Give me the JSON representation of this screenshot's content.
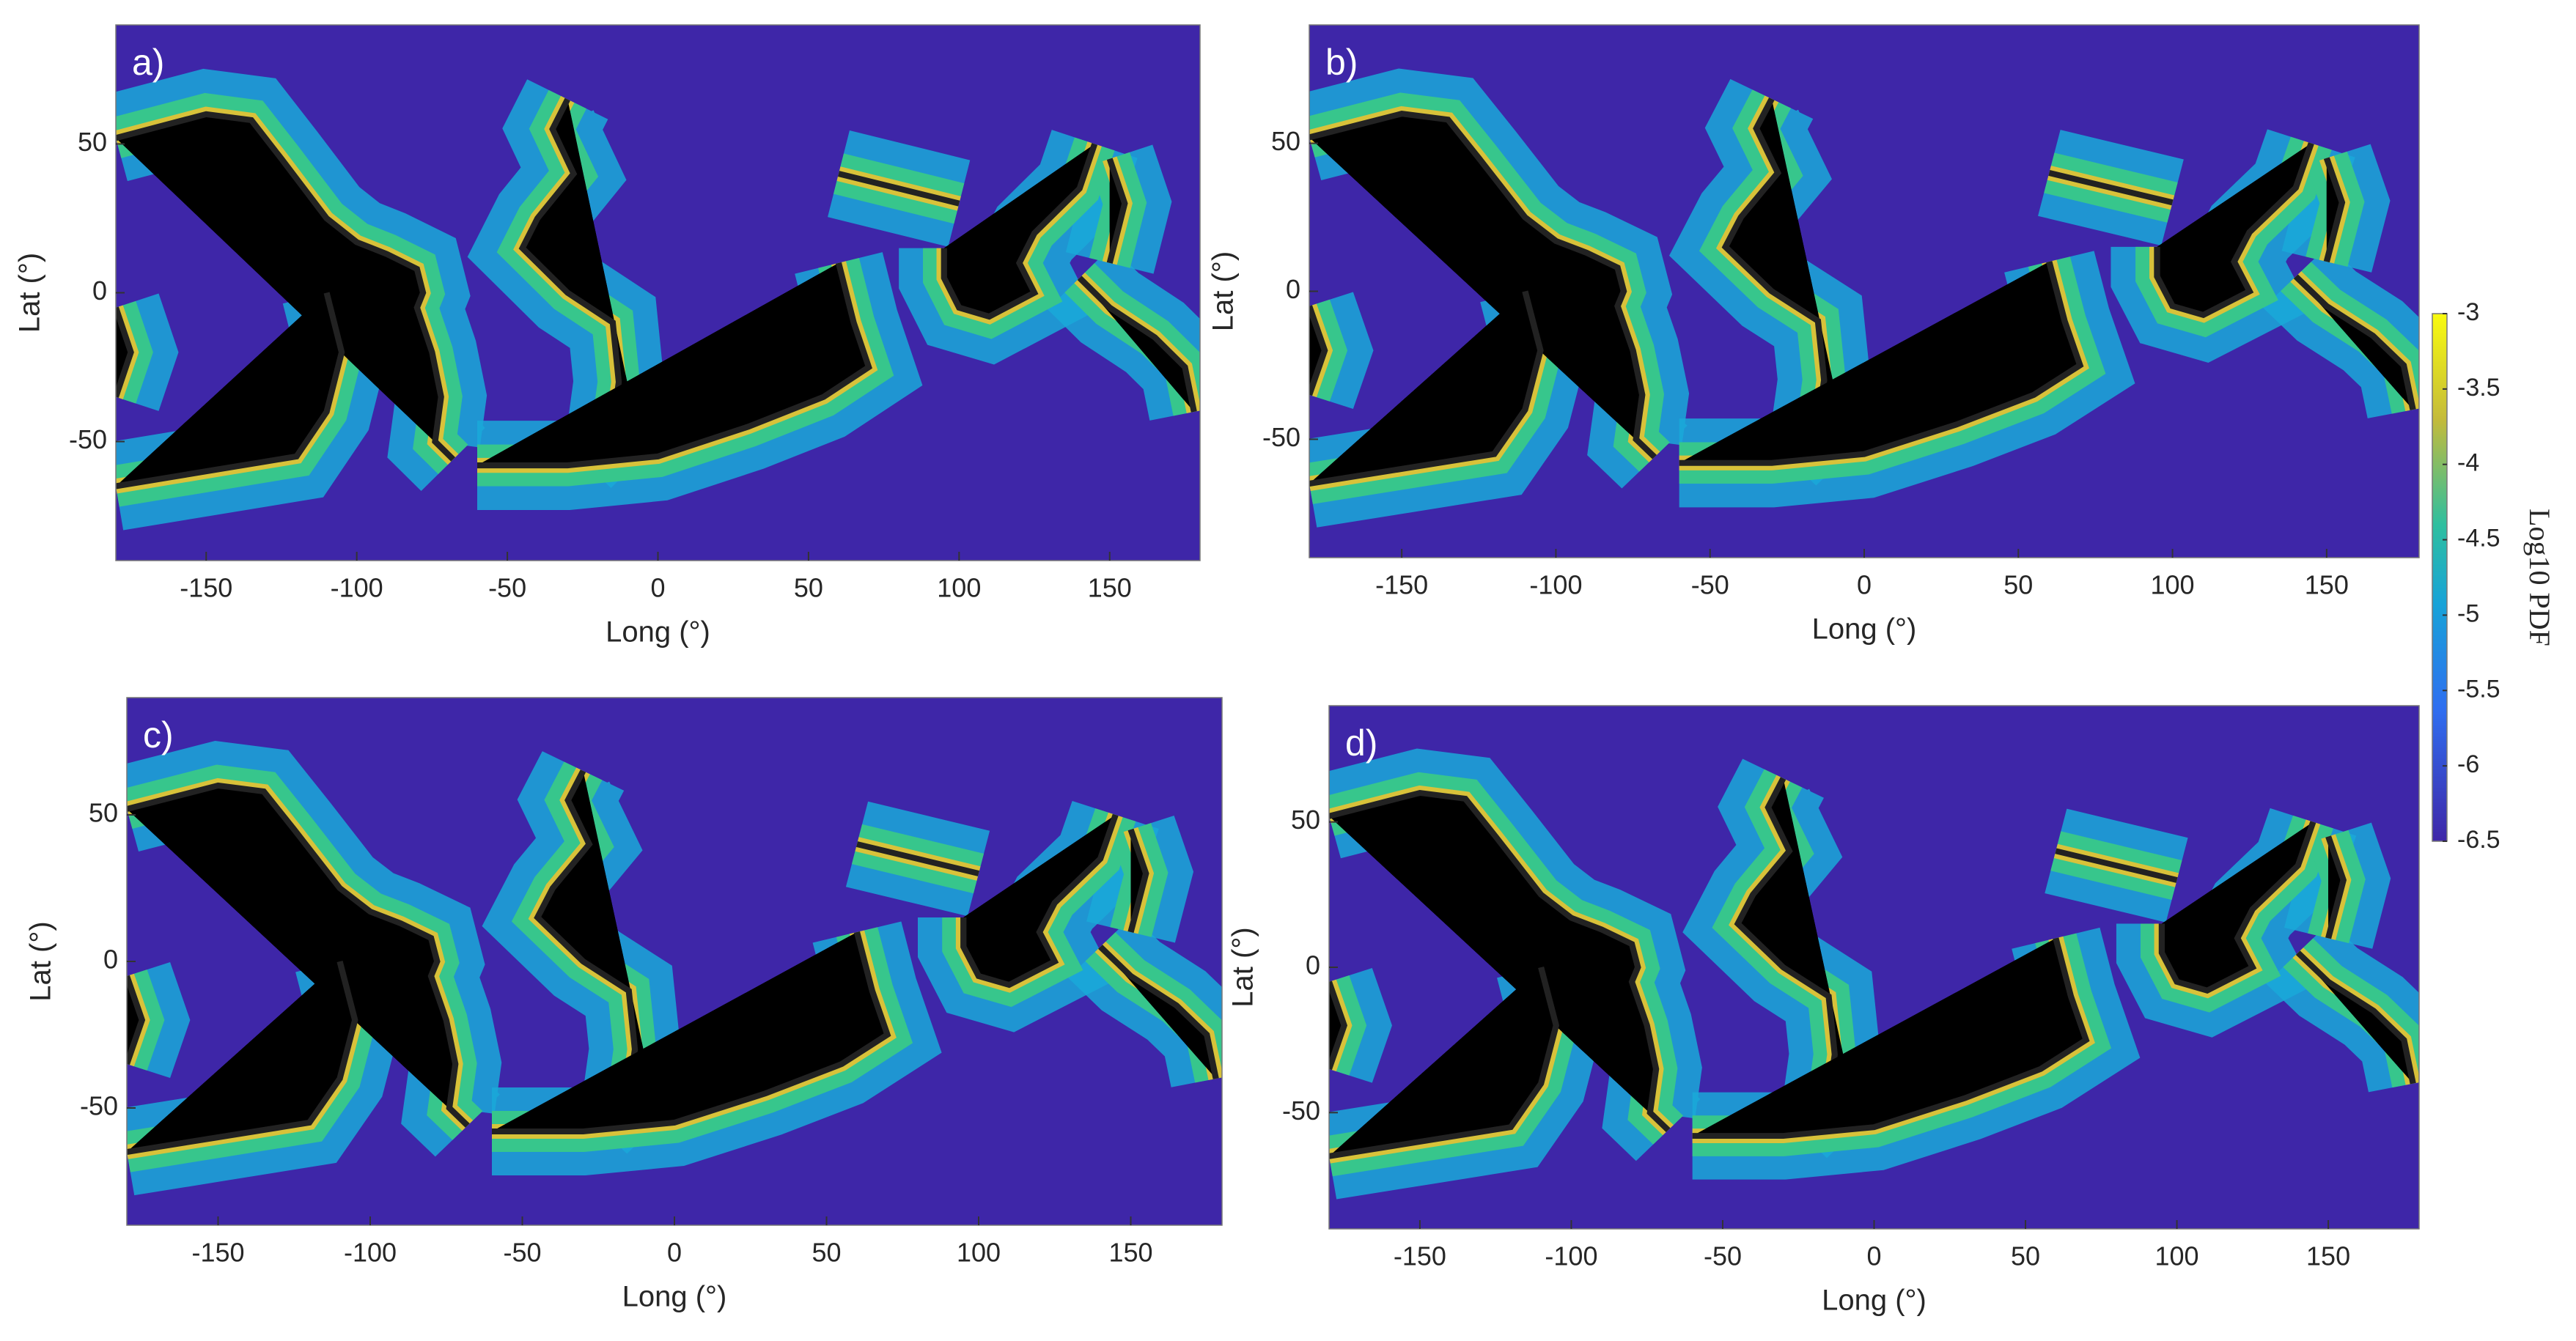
{
  "chart_data": [
    {
      "type": "heatmap",
      "panel_label": "a)",
      "xlabel": "Long (°)",
      "ylabel": "Lat (°)",
      "xlim": [
        -180,
        180
      ],
      "ylim": [
        -90,
        90
      ],
      "xticks": [
        -150,
        -100,
        -50,
        0,
        50,
        100,
        150
      ],
      "yticks": [
        -50,
        0,
        50
      ]
    },
    {
      "type": "heatmap",
      "panel_label": "b)",
      "xlabel": "Long (°)",
      "ylabel": "Lat (°)",
      "xlim": [
        -180,
        180
      ],
      "ylim": [
        -90,
        90
      ],
      "xticks": [
        -150,
        -100,
        -50,
        0,
        50,
        100,
        150
      ],
      "yticks": [
        -50,
        0,
        50
      ]
    },
    {
      "type": "heatmap",
      "panel_label": "c)",
      "xlabel": "Long (°)",
      "ylabel": "Lat (°)",
      "xlim": [
        -180,
        180
      ],
      "ylim": [
        -90,
        90
      ],
      "xticks": [
        -150,
        -100,
        -50,
        0,
        50,
        100,
        150
      ],
      "yticks": [
        -50,
        0,
        50
      ]
    },
    {
      "type": "heatmap",
      "panel_label": "d)",
      "xlabel": "Long (°)",
      "ylabel": "Lat (°)",
      "xlim": [
        -180,
        180
      ],
      "ylim": [
        -90,
        90
      ],
      "xticks": [
        -150,
        -100,
        -50,
        0,
        50,
        100,
        150
      ],
      "yticks": [
        -50,
        0,
        50
      ]
    }
  ],
  "colorbar": {
    "label": "Log10 PDF",
    "lim": [
      -6.5,
      -3
    ],
    "ticks": [
      -3,
      -3.5,
      -4,
      -4.5,
      -5,
      -5.5,
      -6,
      -6.5
    ]
  }
}
